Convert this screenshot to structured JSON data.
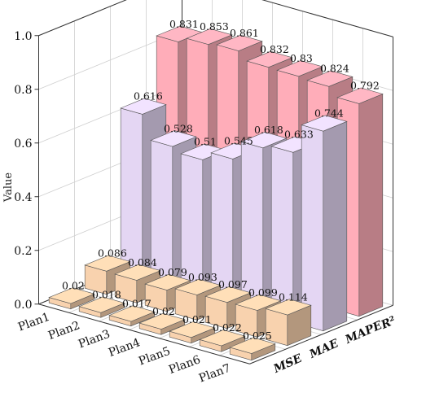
{
  "chart_data": {
    "type": "bar",
    "bar_3d": true,
    "ylabel": "Value",
    "ylim": [
      0,
      1.0
    ],
    "y_ticks": [
      "0.0",
      "0.2",
      "0.4",
      "0.6",
      "0.8",
      "1.0"
    ],
    "categories": [
      "Plan1",
      "Plan2",
      "Plan3",
      "Plan4",
      "Plan5",
      "Plan6",
      "Plan7"
    ],
    "series": [
      {
        "name": "MSE",
        "color": "#f8d2ae",
        "values": [
          0.02,
          0.018,
          0.017,
          0.02,
          0.021,
          0.022,
          0.025
        ]
      },
      {
        "name": "MAE",
        "color": "#f8d2ae",
        "values": [
          0.086,
          0.084,
          0.079,
          0.093,
          0.097,
          0.099,
          0.114
        ]
      },
      {
        "name": "MAPE",
        "color": "#e4d6f3",
        "values": [
          0.616,
          0.528,
          0.51,
          0.545,
          0.618,
          0.633,
          0.744
        ]
      },
      {
        "name": "R²",
        "color": "#ffadb9",
        "values": [
          0.831,
          0.853,
          0.861,
          0.832,
          0.83,
          0.824,
          0.792
        ]
      }
    ],
    "grid": true
  }
}
